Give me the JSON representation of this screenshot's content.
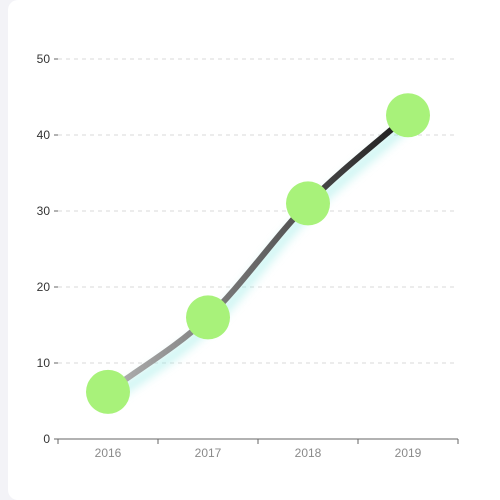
{
  "chart_data": {
    "type": "line",
    "categories": [
      "2016",
      "2017",
      "2018",
      "2019"
    ],
    "series": [
      {
        "values": [
          6.2,
          16,
          31,
          42.6
        ]
      }
    ],
    "ylim": [
      0,
      50
    ],
    "yticks": [
      "0",
      "10",
      "20",
      "30",
      "40",
      "50"
    ],
    "grid": "horizontal dashed",
    "line_gradient": [
      "#b3b3b3",
      "#1a1a1a"
    ],
    "marker_color": "#a8f27a",
    "line_glow_color": "#8ae8e2",
    "title": "",
    "xlabel": "",
    "ylabel": ""
  }
}
